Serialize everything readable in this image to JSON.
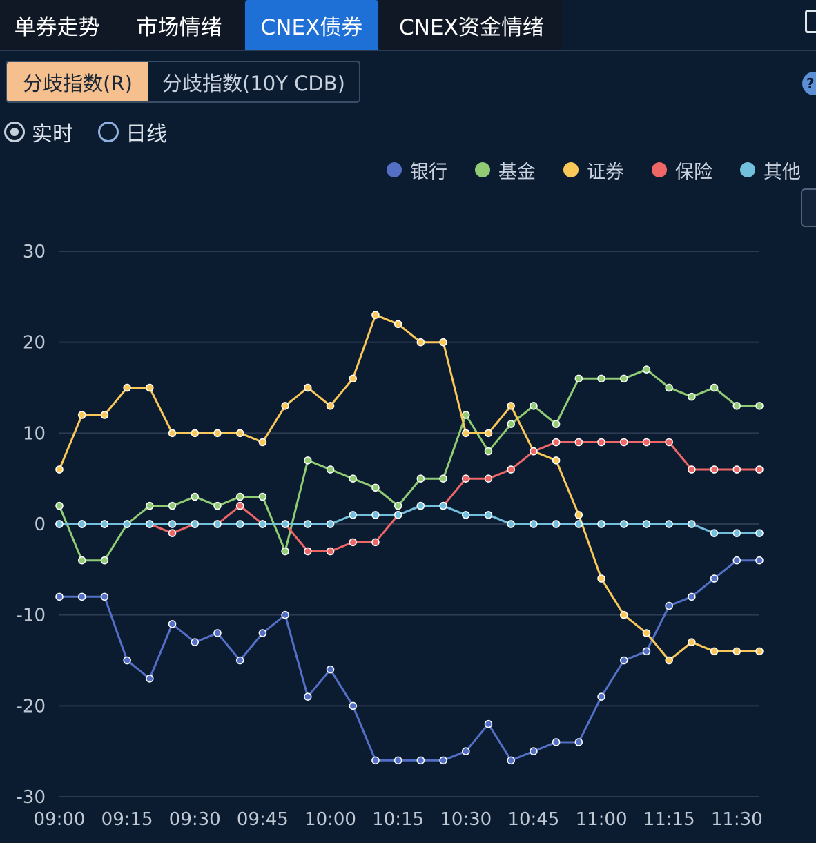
{
  "tabs": [
    {
      "label": "单券走势",
      "active": false
    },
    {
      "label": "市场情绪",
      "active": false
    },
    {
      "label": "CNEX债券",
      "active": true
    },
    {
      "label": "CNEX资金情绪",
      "active": false
    }
  ],
  "segments": [
    {
      "label": "分歧指数(R)",
      "active": true
    },
    {
      "label": "分歧指数(10Y CDB)",
      "active": false
    }
  ],
  "help_label": "?",
  "radios": [
    {
      "label": "实时",
      "checked": true
    },
    {
      "label": "日线",
      "checked": false
    }
  ],
  "colors": {
    "background": "#0b1b30",
    "active_tab": "#1e6fd6",
    "active_segment": "#f5bf8e",
    "grid": "#2c3b52"
  },
  "chart_data": {
    "type": "line",
    "x": [
      "09:00",
      "09:05",
      "09:10",
      "09:15",
      "09:20",
      "09:25",
      "09:30",
      "09:35",
      "09:40",
      "09:45",
      "09:50",
      "09:55",
      "10:00",
      "10:05",
      "10:10",
      "10:15",
      "10:20",
      "10:25",
      "10:30",
      "10:35",
      "10:40",
      "10:45",
      "10:50",
      "10:55",
      "11:00",
      "11:05",
      "11:10",
      "11:15",
      "11:20",
      "11:25",
      "11:30",
      "11:35"
    ],
    "x_tick_labels": [
      "09:00",
      "09:15",
      "09:30",
      "09:45",
      "10:00",
      "10:15",
      "10:30",
      "10:45",
      "11:00",
      "11:15",
      "11:30"
    ],
    "y_ticks": [
      30,
      20,
      10,
      0,
      -10,
      -20,
      -30
    ],
    "ylim": [
      -30,
      30
    ],
    "grid": true,
    "legend_position": "top-right",
    "series": [
      {
        "name": "银行",
        "color": "#5470c6",
        "values": [
          -8,
          -8,
          -8,
          -15,
          -17,
          -11,
          -13,
          -12,
          -15,
          -12,
          -10,
          -19,
          -16,
          -20,
          -26,
          -26,
          -26,
          -26,
          -25,
          -22,
          -26,
          -25,
          -24,
          -24,
          -19,
          -15,
          -14,
          -9,
          -8,
          -6,
          -4,
          -4
        ]
      },
      {
        "name": "基金",
        "color": "#91cc75",
        "values": [
          2,
          -4,
          -4,
          0,
          2,
          2,
          3,
          2,
          3,
          3,
          -3,
          7,
          6,
          5,
          4,
          2,
          5,
          5,
          12,
          8,
          11,
          13,
          11,
          16,
          16,
          16,
          17,
          15,
          14,
          15,
          13,
          13
        ]
      },
      {
        "name": "证券",
        "color": "#fac858",
        "values": [
          6,
          12,
          12,
          15,
          15,
          10,
          10,
          10,
          10,
          9,
          13,
          15,
          13,
          16,
          23,
          22,
          20,
          20,
          10,
          10,
          13,
          8,
          7,
          1,
          -6,
          -10,
          -12,
          -15,
          -13,
          -14,
          -14,
          -14
        ]
      },
      {
        "name": "保险",
        "color": "#ee6666",
        "values": [
          0,
          0,
          0,
          0,
          0,
          -1,
          0,
          0,
          2,
          0,
          0,
          -3,
          -3,
          -2,
          -2,
          1,
          2,
          2,
          5,
          5,
          6,
          8,
          9,
          9,
          9,
          9,
          9,
          9,
          6,
          6,
          6,
          6
        ]
      },
      {
        "name": "其他",
        "color": "#73c0de",
        "values": [
          0,
          0,
          0,
          0,
          0,
          0,
          0,
          0,
          0,
          0,
          0,
          0,
          0,
          1,
          1,
          1,
          2,
          2,
          1,
          1,
          0,
          0,
          0,
          0,
          0,
          0,
          0,
          0,
          0,
          -1,
          -1,
          -1
        ]
      }
    ]
  }
}
